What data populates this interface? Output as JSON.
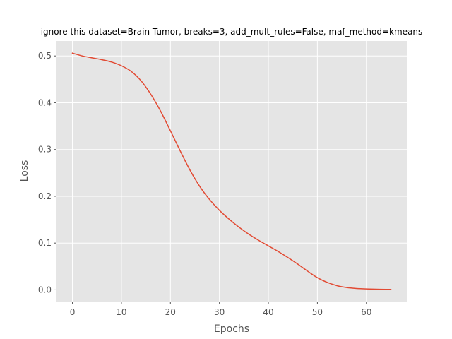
{
  "chart_data": {
    "type": "line",
    "title": "ignore this dataset=Brain Tumor, breaks=3, add_mult_rules=False, maf_method=kmeans",
    "xlabel": "Epochs",
    "ylabel": "Loss",
    "xlim": [
      -3.25,
      68.25
    ],
    "ylim": [
      -0.025,
      0.532
    ],
    "xticks": [
      0,
      10,
      20,
      30,
      40,
      50,
      60
    ],
    "xtick_labels": [
      "0",
      "10",
      "20",
      "30",
      "40",
      "50",
      "60"
    ],
    "yticks": [
      0.0,
      0.1,
      0.2,
      0.3,
      0.4,
      0.5
    ],
    "ytick_labels": [
      "0.0",
      "0.1",
      "0.2",
      "0.3",
      "0.4",
      "0.5"
    ],
    "grid": true,
    "style": "ggplot",
    "colors": {
      "plot_background": "#e5e5e5",
      "grid": "#ffffff",
      "line": "#e24a33"
    },
    "series": [
      {
        "x": [
          0,
          2,
          4,
          6,
          8,
          10,
          12,
          14,
          16,
          18,
          20,
          22,
          24,
          26,
          28,
          30,
          32,
          34,
          36,
          38,
          40,
          42,
          44,
          46,
          48,
          50,
          52,
          54,
          56,
          58,
          60,
          62,
          64,
          65
        ],
        "values": [
          0.506,
          0.5,
          0.496,
          0.492,
          0.487,
          0.479,
          0.467,
          0.447,
          0.418,
          0.382,
          0.34,
          0.297,
          0.256,
          0.221,
          0.193,
          0.17,
          0.151,
          0.134,
          0.119,
          0.106,
          0.094,
          0.082,
          0.069,
          0.055,
          0.04,
          0.026,
          0.016,
          0.009,
          0.005,
          0.003,
          0.002,
          0.0015,
          0.001,
          0.001
        ]
      }
    ]
  }
}
